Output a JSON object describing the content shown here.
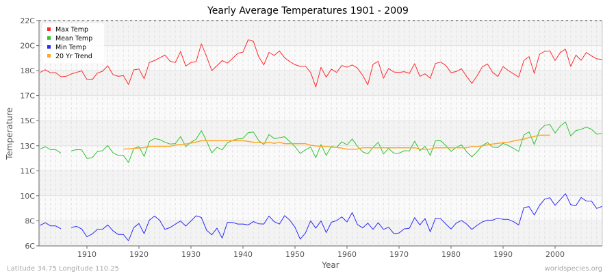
{
  "chart_data": {
    "type": "line",
    "title": "Yearly Average Temperatures 1901 - 2009",
    "xlabel": "Year",
    "ylabel": "Temperature",
    "xlim": [
      1901,
      2009
    ],
    "ylim": [
      6,
      22
    ],
    "x_ticks": [
      1910,
      1920,
      1930,
      1940,
      1950,
      1960,
      1970,
      1980,
      1990,
      2000
    ],
    "y_ticks": [
      {
        "value": 6,
        "label": "6C"
      },
      {
        "value": 7.78,
        "label": "8C"
      },
      {
        "value": 9.56,
        "label": "10C"
      },
      {
        "value": 11.33,
        "label": "11C"
      },
      {
        "value": 13.11,
        "label": "13C"
      },
      {
        "value": 14.89,
        "label": "15C"
      },
      {
        "value": 16.67,
        "label": "17C"
      },
      {
        "value": 18.44,
        "label": "18C"
      },
      {
        "value": 20.22,
        "label": "20C"
      },
      {
        "value": 22,
        "label": "22C"
      }
    ],
    "grid": true,
    "legend_position": "top-left",
    "x": [
      1901,
      1902,
      1903,
      1904,
      1905,
      1906,
      1907,
      1908,
      1909,
      1910,
      1911,
      1912,
      1913,
      1914,
      1915,
      1916,
      1917,
      1918,
      1919,
      1920,
      1921,
      1922,
      1923,
      1924,
      1925,
      1926,
      1927,
      1928,
      1929,
      1930,
      1931,
      1932,
      1933,
      1934,
      1935,
      1936,
      1937,
      1938,
      1939,
      1940,
      1941,
      1942,
      1943,
      1944,
      1945,
      1946,
      1947,
      1948,
      1949,
      1950,
      1951,
      1952,
      1953,
      1954,
      1955,
      1956,
      1957,
      1958,
      1959,
      1960,
      1961,
      1962,
      1963,
      1964,
      1965,
      1966,
      1967,
      1968,
      1969,
      1970,
      1971,
      1972,
      1973,
      1974,
      1975,
      1976,
      1977,
      1978,
      1979,
      1980,
      1981,
      1982,
      1983,
      1984,
      1985,
      1986,
      1987,
      1988,
      1989,
      1990,
      1991,
      1992,
      1993,
      1994,
      1995,
      1996,
      1997,
      1998,
      1999,
      2000,
      2001,
      2002,
      2003,
      2004,
      2005,
      2006,
      2007,
      2008,
      2009
    ],
    "series": [
      {
        "name": "Max Temp",
        "color": "#ff2a2a",
        "values": [
          18.32,
          18.51,
          18.29,
          18.3,
          18.01,
          18.04,
          18.21,
          18.32,
          18.43,
          17.82,
          17.8,
          18.27,
          18.4,
          18.79,
          18.17,
          18.04,
          18.09,
          17.46,
          18.5,
          18.56,
          17.87,
          19.03,
          19.16,
          19.36,
          19.55,
          19.11,
          19.02,
          19.8,
          18.77,
          19.02,
          19.08,
          20.35,
          19.45,
          18.45,
          18.79,
          19.16,
          18.98,
          19.32,
          19.67,
          19.76,
          20.64,
          20.52,
          19.45,
          18.85,
          19.74,
          19.52,
          19.84,
          19.36,
          19.08,
          18.87,
          18.74,
          18.77,
          18.32,
          17.28,
          18.68,
          17.98,
          18.55,
          18.32,
          18.81,
          18.69,
          18.85,
          18.63,
          18.11,
          17.44,
          18.89,
          19.1,
          17.91,
          18.6,
          18.35,
          18.32,
          18.37,
          18.25,
          18.94,
          18.04,
          18.22,
          17.9,
          18.95,
          19.05,
          18.81,
          18.3,
          18.38,
          18.58,
          18.03,
          17.54,
          18.06,
          18.71,
          18.92,
          18.32,
          18.03,
          18.73,
          18.45,
          18.22,
          17.99,
          19.16,
          19.44,
          18.25,
          19.6,
          19.81,
          19.84,
          19.16,
          19.73,
          19.97,
          18.74,
          19.55,
          19.18,
          19.73,
          19.49,
          19.28,
          19.24
        ]
      },
      {
        "name": "Mean Temp",
        "color": "#2ec42e",
        "values": [
          12.87,
          13.05,
          12.84,
          12.84,
          12.58,
          null,
          12.74,
          12.84,
          12.82,
          12.21,
          12.26,
          12.69,
          12.76,
          13.13,
          12.61,
          12.43,
          12.43,
          11.92,
          12.92,
          13.05,
          12.35,
          13.41,
          13.62,
          13.55,
          13.36,
          13.23,
          13.26,
          13.76,
          13.05,
          13.36,
          13.57,
          14.19,
          13.44,
          12.61,
          13.0,
          12.82,
          13.31,
          13.49,
          13.6,
          13.63,
          14.04,
          14.09,
          13.49,
          13.2,
          13.91,
          13.62,
          13.68,
          13.75,
          13.41,
          13.05,
          12.56,
          12.82,
          13.02,
          12.26,
          13.2,
          12.43,
          13.07,
          13.0,
          13.39,
          13.18,
          13.59,
          13.07,
          12.68,
          12.53,
          12.99,
          13.36,
          12.52,
          12.92,
          12.58,
          12.58,
          12.76,
          12.74,
          13.44,
          12.76,
          13.07,
          12.43,
          13.46,
          13.47,
          13.13,
          12.71,
          12.99,
          13.18,
          12.68,
          12.32,
          12.68,
          13.13,
          13.34,
          13.02,
          12.99,
          13.28,
          13.13,
          12.92,
          12.71,
          13.88,
          14.09,
          13.2,
          14.2,
          14.56,
          14.62,
          14.01,
          14.51,
          14.8,
          13.81,
          14.19,
          14.27,
          14.44,
          14.28,
          13.93,
          13.98
        ]
      },
      {
        "name": "Min Temp",
        "color": "#2a2aff",
        "values": [
          7.46,
          7.65,
          7.42,
          7.42,
          7.21,
          null,
          7.31,
          7.39,
          7.2,
          6.65,
          6.84,
          7.17,
          7.17,
          7.49,
          7.08,
          6.81,
          6.81,
          6.37,
          7.3,
          7.59,
          6.87,
          7.83,
          8.12,
          7.81,
          7.17,
          7.31,
          7.54,
          7.77,
          7.41,
          7.77,
          8.14,
          8.02,
          7.12,
          6.79,
          7.26,
          6.55,
          7.67,
          7.67,
          7.55,
          7.55,
          7.49,
          7.73,
          7.57,
          7.55,
          8.12,
          7.72,
          7.55,
          8.15,
          7.83,
          7.33,
          6.48,
          6.91,
          7.78,
          7.26,
          7.78,
          6.95,
          7.68,
          7.8,
          8.06,
          7.7,
          8.37,
          7.52,
          7.28,
          7.62,
          7.17,
          7.65,
          7.17,
          7.33,
          6.87,
          6.92,
          7.21,
          7.26,
          8.01,
          7.49,
          7.94,
          7.0,
          7.96,
          7.93,
          7.55,
          7.2,
          7.62,
          7.81,
          7.55,
          7.17,
          7.46,
          7.7,
          7.83,
          7.83,
          7.98,
          7.88,
          7.88,
          7.72,
          7.49,
          8.72,
          8.79,
          8.19,
          8.87,
          9.32,
          9.42,
          8.88,
          9.29,
          9.71,
          8.93,
          8.85,
          9.44,
          9.19,
          9.18,
          8.66,
          8.8
        ]
      },
      {
        "name": "20 Yr Trend",
        "color": "#ffa726",
        "values": [
          null,
          null,
          null,
          null,
          null,
          null,
          null,
          null,
          null,
          null,
          null,
          null,
          null,
          null,
          null,
          null,
          12.87,
          12.89,
          12.92,
          12.95,
          12.98,
          13.07,
          13.07,
          13.07,
          13.07,
          13.07,
          13.16,
          13.2,
          13.23,
          13.3,
          13.37,
          13.47,
          13.47,
          13.47,
          13.47,
          13.47,
          13.47,
          13.47,
          13.47,
          13.47,
          13.42,
          13.36,
          13.36,
          13.29,
          13.36,
          13.28,
          13.36,
          13.26,
          13.26,
          13.26,
          13.26,
          13.26,
          13.15,
          13.1,
          13.07,
          13.05,
          13.02,
          13.0,
          12.94,
          12.87,
          12.87,
          12.87,
          12.97,
          12.97,
          12.97,
          12.97,
          12.97,
          12.97,
          12.97,
          12.97,
          12.97,
          12.97,
          12.97,
          12.87,
          12.87,
          12.87,
          12.97,
          12.97,
          12.97,
          12.97,
          12.97,
          12.97,
          12.97,
          13.05,
          13.05,
          13.1,
          13.18,
          13.23,
          13.28,
          13.33,
          13.36,
          13.45,
          13.52,
          13.58,
          13.7,
          13.77,
          13.86,
          13.86,
          13.86,
          null,
          null,
          null,
          null,
          null,
          null,
          null,
          null,
          null,
          null
        ]
      }
    ]
  },
  "footer": {
    "location": "Latitude 34.75 Longitude 110.25",
    "source": "worldspecies.org"
  }
}
